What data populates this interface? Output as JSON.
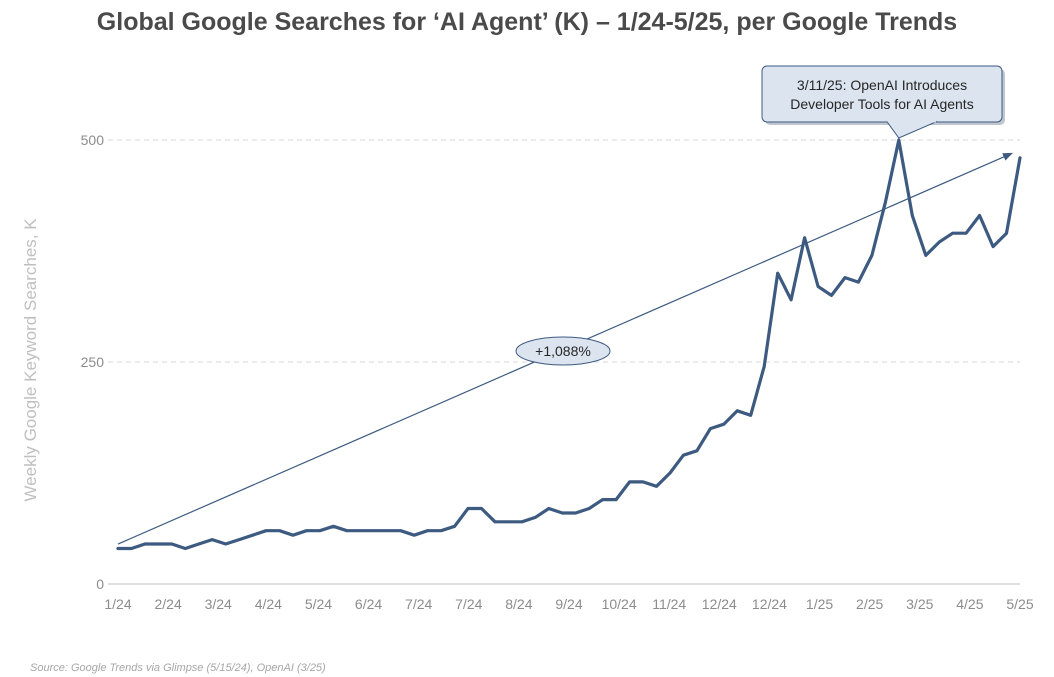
{
  "title": "Global Google Searches for ‘AI Agent’ (K) – 1/24-5/25, per Google Trends",
  "source": "Source: Google Trends via Glimpse (5/15/24), OpenAI (3/25)",
  "colors": {
    "line": "#3d5a80",
    "trend": "#3d5a80",
    "grid": "#d9d9d9",
    "callout_fill": "#dbe4ef",
    "callout_stroke": "#3d5a80"
  },
  "chart_data": {
    "type": "line",
    "title": "Global Google Searches for ‘AI Agent’ (K) – 1/24-5/25, per Google Trends",
    "ylabel": "Weekly Google Keyword Searches, K",
    "xlabel": "",
    "ylim": [
      0,
      500
    ],
    "yticks": [
      0,
      250,
      500
    ],
    "grid": "horizontal dashed",
    "x_tick_labels": [
      "1/24",
      "2/24",
      "3/24",
      "4/24",
      "5/24",
      "6/24",
      "7/24",
      "7/24",
      "8/24",
      "9/24",
      "10/24",
      "11/24",
      "12/24",
      "12/24",
      "1/25",
      "2/25",
      "3/25",
      "4/25",
      "5/25"
    ],
    "series": [
      {
        "values": [
          40,
          40,
          45,
          45,
          45,
          40,
          45,
          50,
          45,
          50,
          55,
          60,
          60,
          55,
          60,
          60,
          65,
          60,
          60,
          60,
          60,
          60,
          55,
          60,
          60,
          65,
          85,
          85,
          70,
          70,
          70,
          75,
          85,
          80,
          80,
          85,
          95,
          95,
          115,
          115,
          110,
          125,
          145,
          150,
          175,
          180,
          195,
          190,
          245,
          350,
          320,
          390,
          335,
          325,
          345,
          340,
          370,
          430,
          500,
          415,
          370,
          385,
          395,
          395,
          415,
          380,
          395,
          480
        ]
      }
    ],
    "trendline": {
      "start": 45,
      "end": 485,
      "label": "+1,088%"
    },
    "annotations": [
      {
        "text_lines": [
          "3/11/25: OpenAI Introduces",
          "Developer Tools for AI Agents"
        ],
        "point_index": 58
      }
    ]
  }
}
